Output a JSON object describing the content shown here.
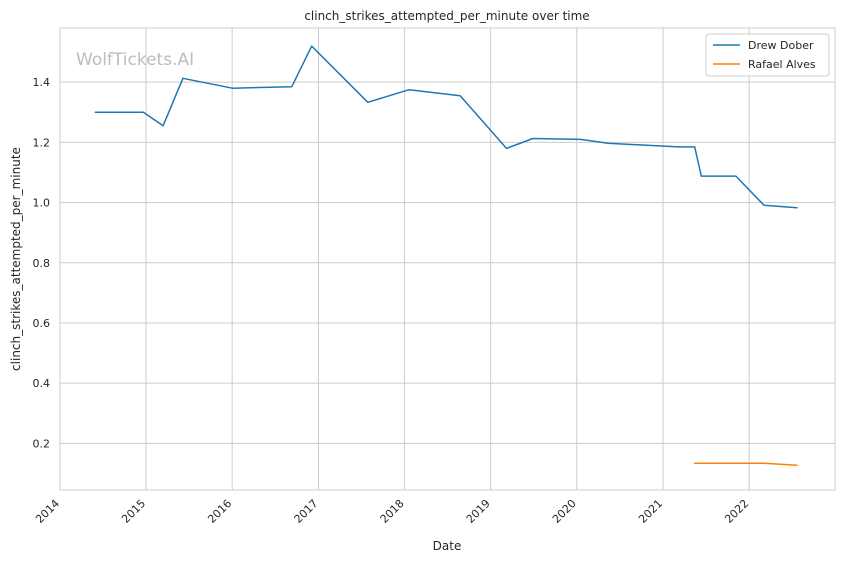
{
  "chart_data": {
    "type": "line",
    "title": "clinch_strikes_attempted_per_minute over time",
    "xlabel": "Date",
    "ylabel": "clinch_strikes_attempted_per_minute",
    "watermark": "WolfTickets.AI",
    "x_ticks": [
      "2014",
      "2015",
      "2016",
      "2017",
      "2018",
      "2019",
      "2020",
      "2021",
      "2022"
    ],
    "y_ticks": [
      "0.2",
      "0.4",
      "0.6",
      "0.8",
      "1.0",
      "1.2",
      "1.4"
    ],
    "ylim": [
      0.045,
      1.58
    ],
    "xlim": [
      "2014-01-01",
      "2022-12-31"
    ],
    "grid": true,
    "legend_position": "top-right",
    "series": [
      {
        "name": "Drew Dober",
        "color": "#1f77b4",
        "points": [
          [
            "2014-05-31",
            1.3
          ],
          [
            "2014-12-20",
            1.3
          ],
          [
            "2015-03-14",
            1.255
          ],
          [
            "2015-06-06",
            1.413
          ],
          [
            "2016-01-02",
            1.38
          ],
          [
            "2016-09-10",
            1.385
          ],
          [
            "2016-12-03",
            1.52
          ],
          [
            "2017-07-29",
            1.333
          ],
          [
            "2018-01-20",
            1.375
          ],
          [
            "2018-08-25",
            1.355
          ],
          [
            "2019-03-09",
            1.18
          ],
          [
            "2019-06-29",
            1.213
          ],
          [
            "2020-01-18",
            1.21
          ],
          [
            "2020-05-13",
            1.197
          ],
          [
            "2021-03-06",
            1.185
          ],
          [
            "2021-05-15",
            1.185
          ],
          [
            "2021-06-12",
            1.088
          ],
          [
            "2021-11-06",
            1.088
          ],
          [
            "2022-03-05",
            0.991
          ],
          [
            "2022-07-23",
            0.983
          ]
        ]
      },
      {
        "name": "Rafael Alves",
        "color": "#ff7f0e",
        "points": [
          [
            "2021-05-15",
            0.134
          ],
          [
            "2021-11-06",
            0.134
          ],
          [
            "2022-03-05",
            0.134
          ],
          [
            "2022-07-23",
            0.127
          ]
        ]
      }
    ]
  }
}
